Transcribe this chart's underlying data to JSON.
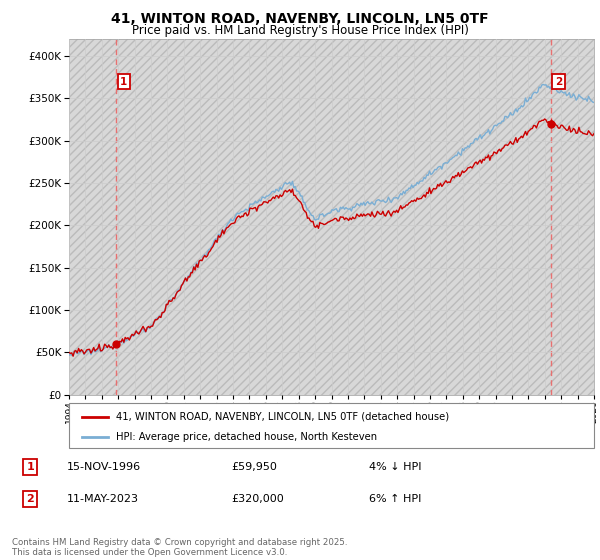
{
  "title": "41, WINTON ROAD, NAVENBY, LINCOLN, LN5 0TF",
  "subtitle": "Price paid vs. HM Land Registry's House Price Index (HPI)",
  "hpi_label": "HPI: Average price, detached house, North Kesteven",
  "property_label": "41, WINTON ROAD, NAVENBY, LINCOLN, LN5 0TF (detached house)",
  "transaction1_date": "15-NOV-1996",
  "transaction1_price": "£59,950",
  "transaction1_hpi": "4% ↓ HPI",
  "transaction2_date": "11-MAY-2023",
  "transaction2_price": "£320,000",
  "transaction2_hpi": "6% ↑ HPI",
  "footer": "Contains HM Land Registry data © Crown copyright and database right 2025.\nThis data is licensed under the Open Government Licence v3.0.",
  "hpi_color": "#7aaed4",
  "property_color": "#cc0000",
  "vline_color": "#e87070",
  "dot_color": "#cc0000",
  "grid_color": "#cccccc",
  "hatch_color": "#d8d8d8",
  "ylim": [
    0,
    420000
  ],
  "yticks": [
    0,
    50000,
    100000,
    150000,
    200000,
    250000,
    300000,
    350000,
    400000
  ],
  "year_start": 1994,
  "year_end": 2026,
  "transaction1_year": 1996.875,
  "transaction1_price_val": 59950,
  "transaction2_year": 2023.36,
  "transaction2_price_val": 320000
}
